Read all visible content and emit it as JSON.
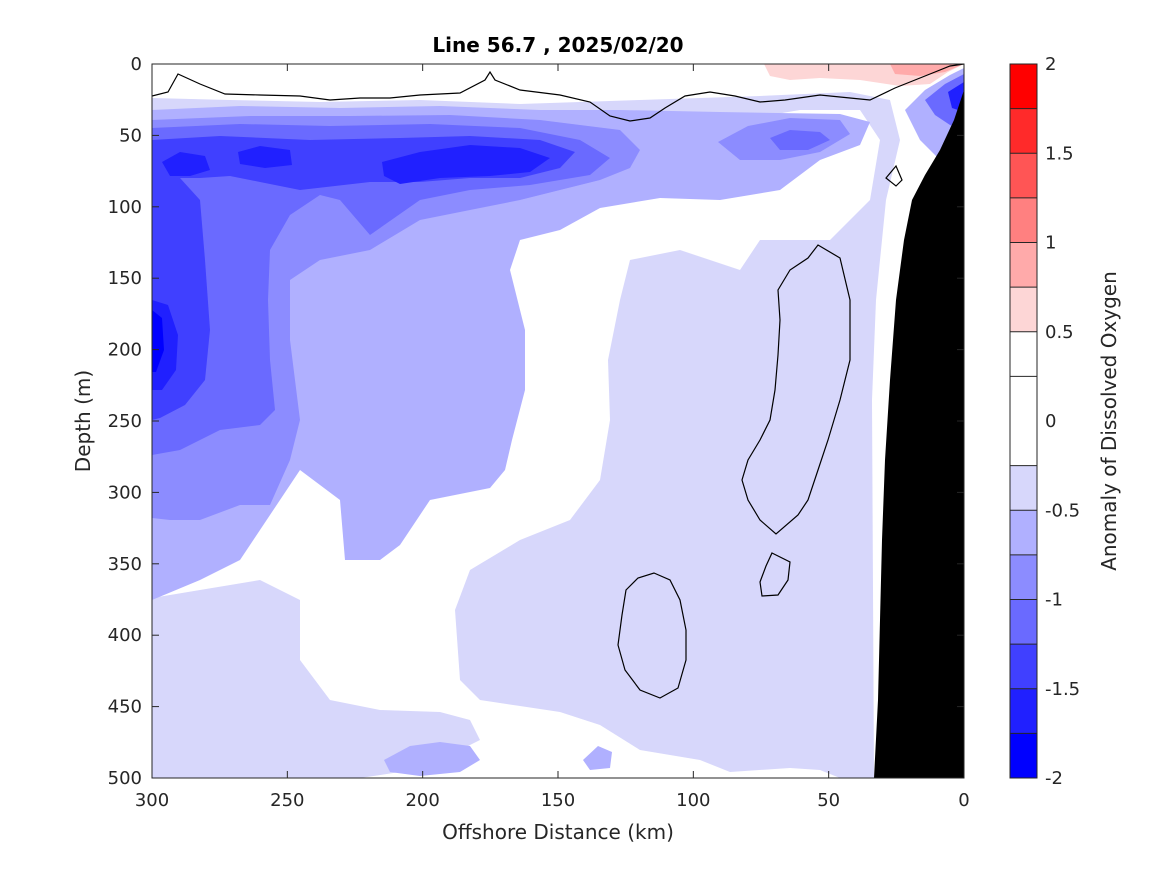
{
  "chart_data": {
    "type": "heatmap",
    "subtype": "filled-contour-section",
    "title": "Line 56.7 , 2025/02/20",
    "xlabel": "Offshore Distance (km)",
    "ylabel": "Depth (m)",
    "xlim": [
      300,
      0
    ],
    "ylim": [
      500,
      0
    ],
    "x_reversed": true,
    "y_reversed": true,
    "x_ticks": [
      300,
      250,
      200,
      150,
      100,
      50,
      0
    ],
    "x_tick_labels": [
      "300",
      "250",
      "200",
      "150",
      "100",
      "50",
      "0"
    ],
    "y_ticks": [
      0,
      50,
      100,
      150,
      200,
      250,
      300,
      350,
      400,
      450,
      500
    ],
    "y_tick_labels": [
      "0",
      "50",
      "100",
      "150",
      "200",
      "250",
      "300",
      "350",
      "400",
      "450",
      "500"
    ],
    "grid": false,
    "colorbar": {
      "label": "Anomaly of Dissolved Oxygen",
      "range": [
        -2,
        2
      ],
      "ticks": [
        -2,
        -1.5,
        -1,
        -0.5,
        0,
        0.5,
        1,
        1.5,
        2
      ],
      "tick_labels": [
        "-2",
        "-1.5",
        "-1",
        "-0.5",
        "0",
        "0.5",
        "1",
        "1.5",
        "2"
      ],
      "levels": [
        -2,
        -1.75,
        -1.5,
        -1.25,
        -1,
        -0.75,
        -0.5,
        -0.25,
        0.25,
        0.5,
        0.75,
        1,
        1.25,
        1.5,
        1.75,
        2
      ],
      "colors": [
        "#0000ff",
        "#2020ff",
        "#4040ff",
        "#6a6aff",
        "#8c8cff",
        "#b0b0ff",
        "#d7d7fb",
        "#ffffff",
        "#ffffff",
        "#fdd6d6",
        "#ffaaaa",
        "#ff8080",
        "#ff5555",
        "#ff2a2a",
        "#ff0000"
      ]
    },
    "zero_contour_color": "#000000",
    "bathymetry_color": "#000000"
  }
}
